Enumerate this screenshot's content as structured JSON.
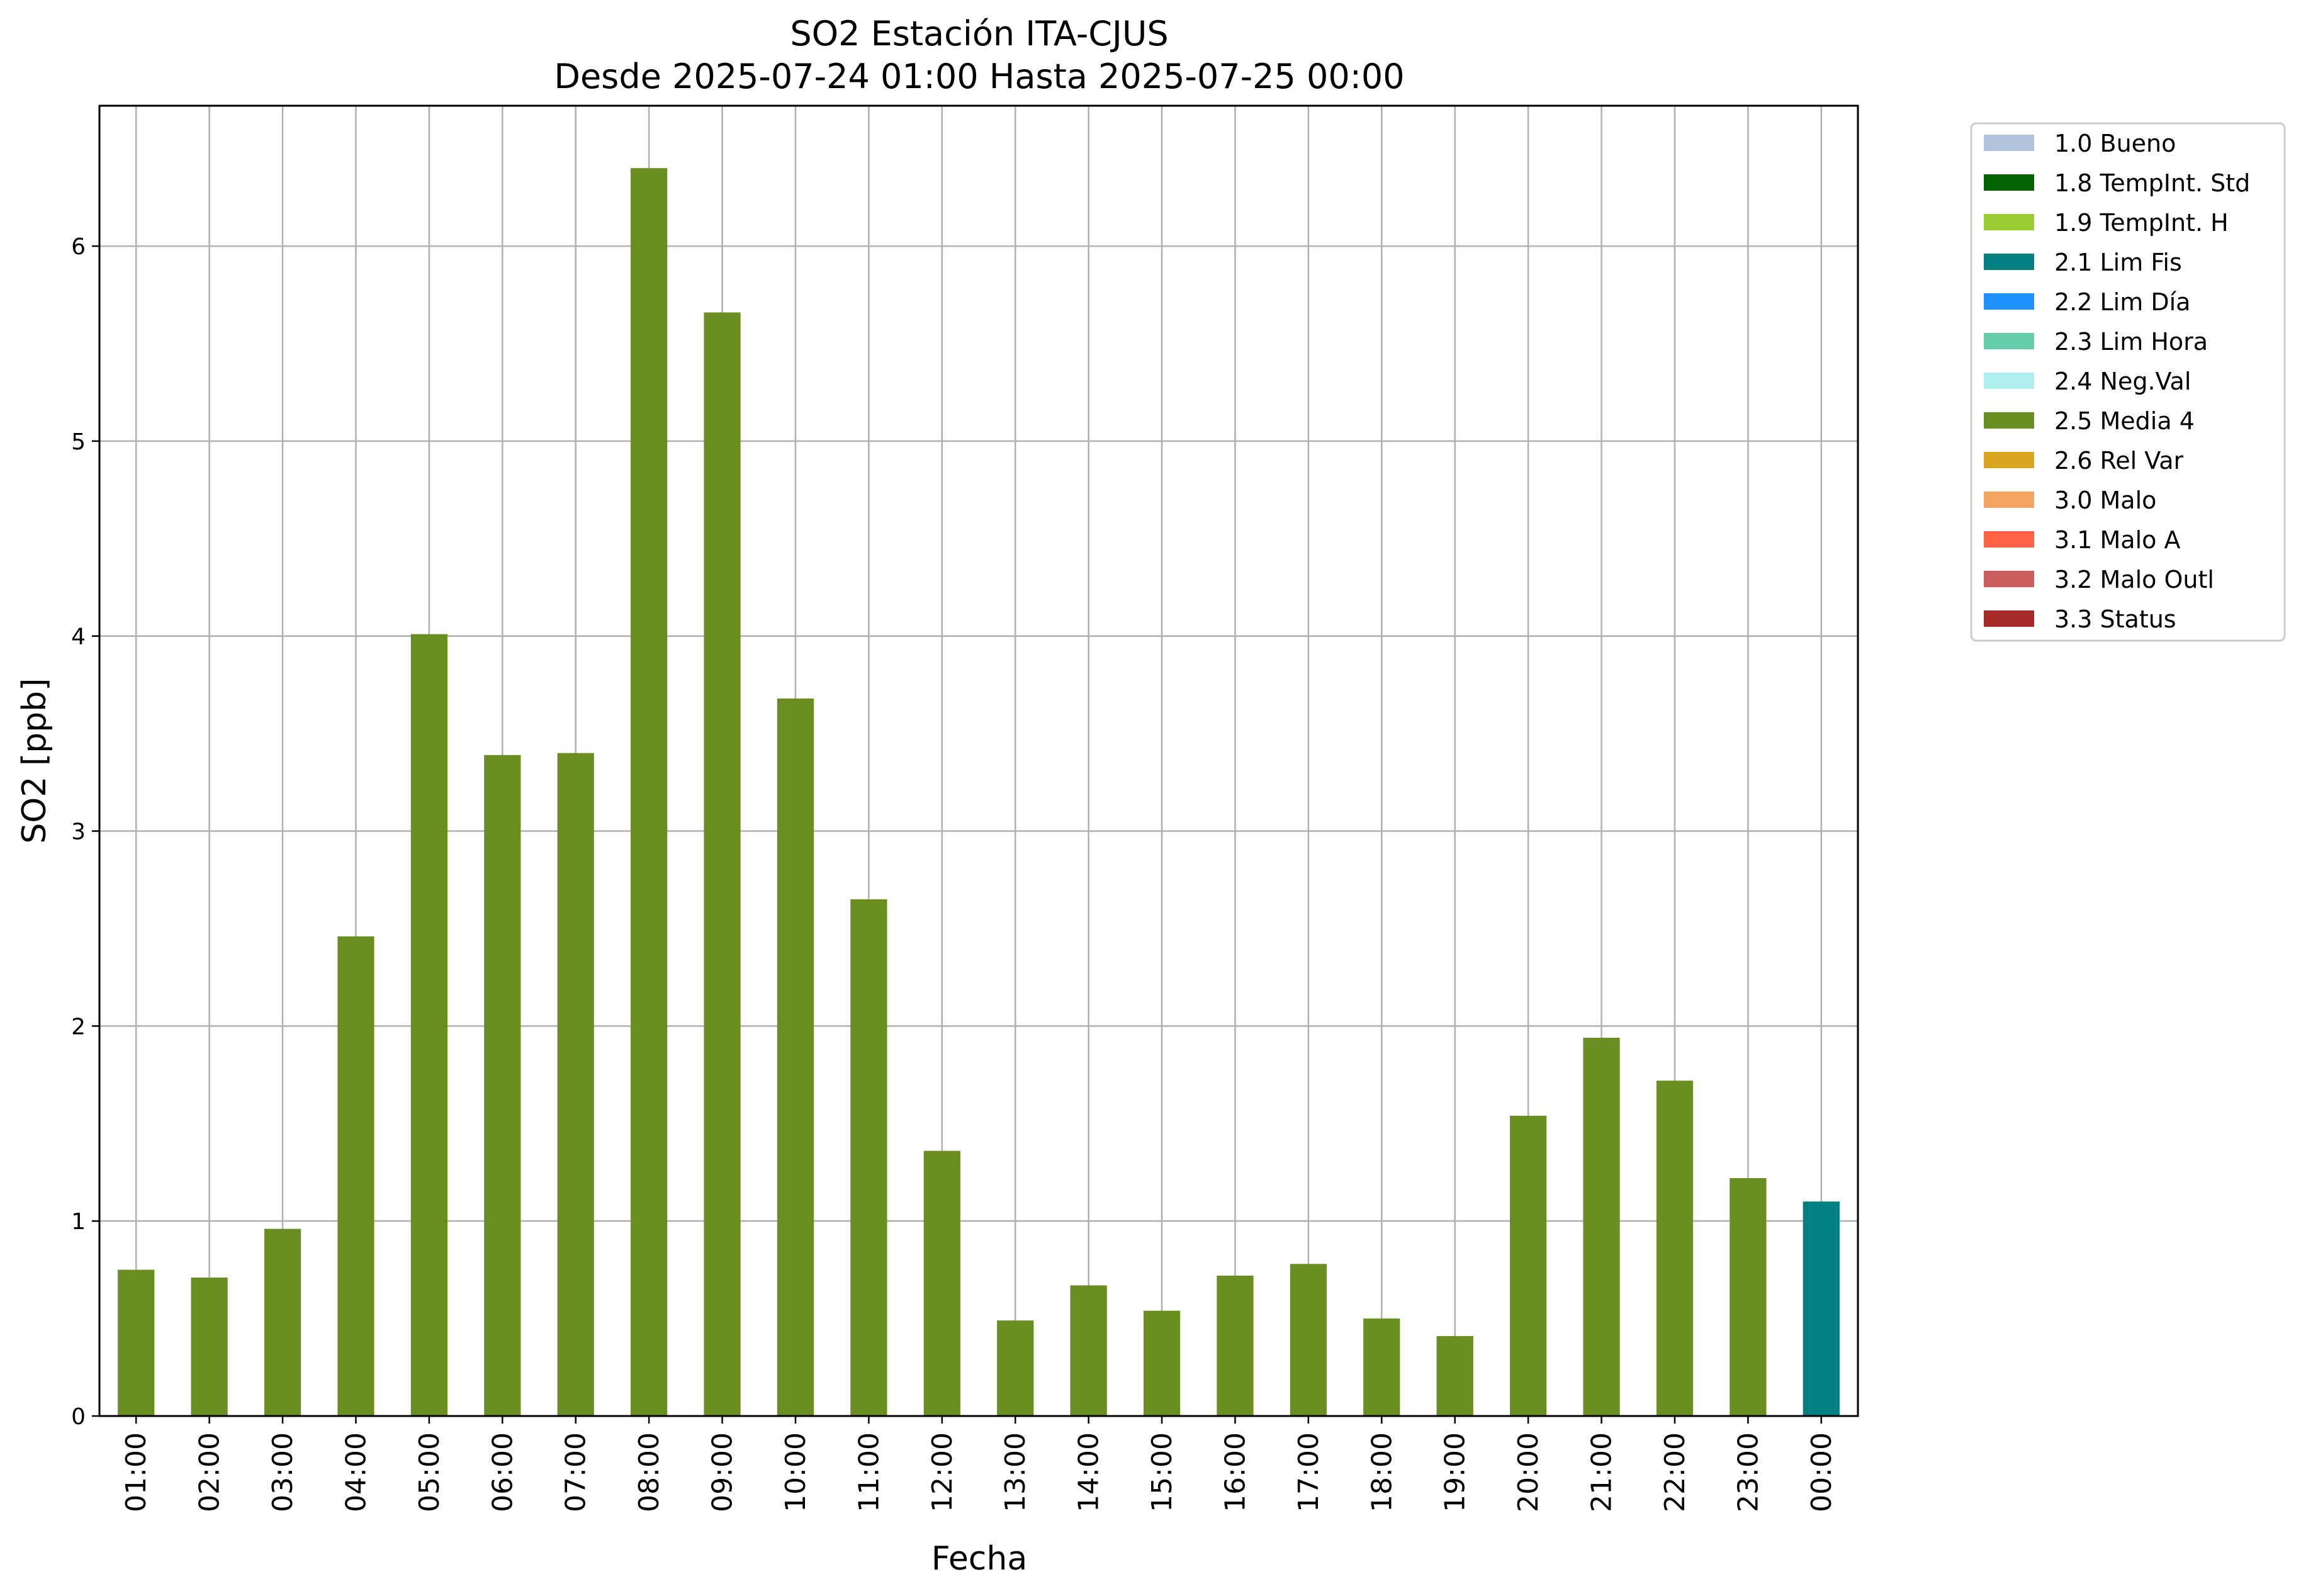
{
  "chart_data": {
    "type": "bar",
    "title": "SO2 Estación ITA-CJUS",
    "subtitle": "Desde 2025-07-24 01:00 Hasta 2025-07-25 00:00",
    "xlabel": "Fecha",
    "ylabel": "SO2 [ppb]",
    "ylim": [
      0,
      6.72
    ],
    "yticks": [
      0,
      1,
      2,
      3,
      4,
      5,
      6
    ],
    "grid": true,
    "legend_position": "outside-top-right",
    "categories": [
      "01:00",
      "02:00",
      "03:00",
      "04:00",
      "05:00",
      "06:00",
      "07:00",
      "08:00",
      "09:00",
      "10:00",
      "11:00",
      "12:00",
      "13:00",
      "14:00",
      "15:00",
      "16:00",
      "17:00",
      "18:00",
      "19:00",
      "20:00",
      "21:00",
      "22:00",
      "23:00",
      "00:00"
    ],
    "values": [
      0.75,
      0.71,
      0.96,
      2.46,
      4.01,
      3.39,
      3.4,
      6.4,
      5.66,
      3.68,
      2.65,
      1.36,
      0.49,
      0.67,
      0.54,
      0.72,
      0.78,
      0.5,
      0.41,
      1.54,
      1.94,
      1.72,
      1.22,
      1.1
    ],
    "flags": [
      "2.5",
      "2.5",
      "2.5",
      "2.5",
      "2.5",
      "2.5",
      "2.5",
      "2.5",
      "2.5",
      "2.5",
      "2.5",
      "2.5",
      "2.5",
      "2.5",
      "2.5",
      "2.5",
      "2.5",
      "2.5",
      "2.5",
      "2.5",
      "2.5",
      "2.5",
      "2.5",
      "2.1"
    ],
    "legend": [
      {
        "code": "1.0",
        "label": "1.0 Bueno",
        "color": "#b0c4de"
      },
      {
        "code": "1.8",
        "label": "1.8 TempInt. Std",
        "color": "#006400"
      },
      {
        "code": "1.9",
        "label": "1.9 TempInt. H",
        "color": "#9acd32"
      },
      {
        "code": "2.1",
        "label": "2.1 Lim Fis",
        "color": "#008080"
      },
      {
        "code": "2.2",
        "label": "2.2 Lim Día",
        "color": "#1e90ff"
      },
      {
        "code": "2.3",
        "label": "2.3 Lim Hora",
        "color": "#66cdaa"
      },
      {
        "code": "2.4",
        "label": "2.4 Neg.Val",
        "color": "#afeeee"
      },
      {
        "code": "2.5",
        "label": "2.5 Media 4",
        "color": "#6b8e23"
      },
      {
        "code": "2.6",
        "label": "2.6 Rel Var",
        "color": "#daa520"
      },
      {
        "code": "3.0",
        "label": "3.0 Malo",
        "color": "#f4a460"
      },
      {
        "code": "3.1",
        "label": "3.1 Malo A",
        "color": "#ff6347"
      },
      {
        "code": "3.2",
        "label": "3.2 Malo Outl",
        "color": "#cd5c5c"
      },
      {
        "code": "3.3",
        "label": "3.3 Status",
        "color": "#a52a2a"
      }
    ]
  }
}
